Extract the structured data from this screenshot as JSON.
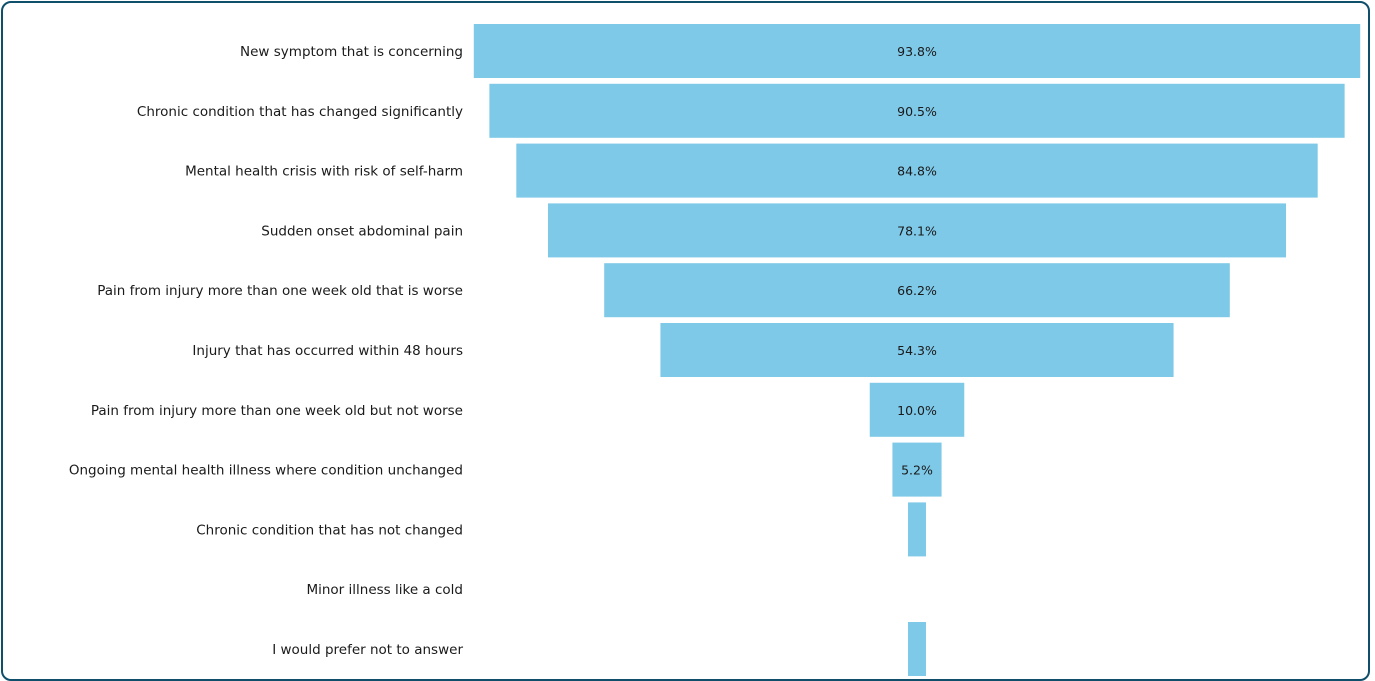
{
  "chart_data": {
    "type": "bar",
    "orientation": "horizontal-funnel",
    "title": "",
    "xlabel": "",
    "ylabel": "",
    "xlim": [
      0,
      100
    ],
    "bar_color": "#7ec8e8",
    "border_color": "#0f4f6c",
    "grid": false,
    "legend": "none",
    "categories": [
      "New symptom that is concerning",
      "Chronic condition that has changed significantly",
      "Mental health crisis with risk of self-harm",
      "Sudden onset abdominal pain",
      "Pain from injury more than one week old that is worse",
      "Injury that has occurred within 48 hours",
      "Pain from injury more than one week old but not worse",
      "Ongoing mental health illness where condition unchanged",
      "Chronic condition that has not changed",
      "Minor illness like a cold",
      "I would prefer not to answer"
    ],
    "values": [
      93.8,
      90.5,
      84.8,
      78.1,
      66.2,
      54.3,
      10.0,
      5.2,
      1.9,
      0,
      1.9
    ],
    "value_labels": [
      "93.8%",
      "90.5%",
      "84.8%",
      "78.1%",
      "66.2%",
      "54.3%",
      "10.0%",
      "5.2%",
      "",
      "",
      ""
    ]
  }
}
